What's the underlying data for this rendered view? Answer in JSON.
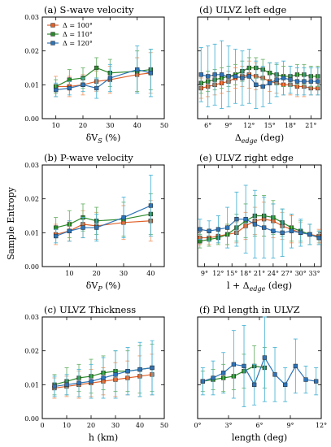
{
  "ylabel": "Sample Entropy",
  "colors": {
    "d100": "#e0622a",
    "d110": "#2a8a2a",
    "d120": "#2e74b8",
    "err100": "#f0a070",
    "err110": "#6fb46f",
    "err120": "#4fb6d6"
  },
  "chart_data": [
    {
      "id": "a",
      "type": "line",
      "title": "(a) S-wave velocity",
      "xlabel_main": "δV",
      "xlabel_sub": "S",
      "xlabel_tail": " (%)",
      "xlim": [
        5,
        50
      ],
      "ylim": [
        0,
        0.03
      ],
      "xticks": [
        10,
        20,
        30,
        40,
        50
      ],
      "xtick_labels": [
        "10",
        "20",
        "30",
        "40",
        "50"
      ],
      "yticks": [
        0,
        0.01,
        0.02,
        0.03
      ],
      "ytick_labels": [
        "0.00",
        "0.01",
        "0.02",
        "0.03"
      ],
      "legend": {
        "position": "top-left",
        "entries": [
          "Δ = 100°",
          "Δ = 110°",
          "Δ = 120°"
        ]
      },
      "series": [
        {
          "key": "d100",
          "x": [
            10,
            15,
            20,
            25,
            30,
            40,
            45
          ],
          "y": [
            0.0095,
            0.0095,
            0.01,
            0.011,
            0.0115,
            0.013,
            0.0135
          ],
          "err": [
            0.003,
            0.003,
            0.003,
            0.003,
            0.004,
            0.005,
            0.006
          ]
        },
        {
          "key": "d110",
          "x": [
            10,
            15,
            20,
            25,
            30,
            40,
            45
          ],
          "y": [
            0.0095,
            0.0115,
            0.012,
            0.015,
            0.0135,
            0.014,
            0.0145
          ],
          "err": [
            0.002,
            0.003,
            0.003,
            0.003,
            0.004,
            0.006,
            0.006
          ]
        },
        {
          "key": "d120",
          "x": [
            10,
            15,
            20,
            25,
            30,
            40,
            45
          ],
          "y": [
            0.0085,
            0.009,
            0.01,
            0.009,
            0.012,
            0.0145,
            0.0135
          ],
          "err": [
            0.002,
            0.002,
            0.002,
            0.003,
            0.004,
            0.007,
            0.007
          ]
        }
      ]
    },
    {
      "id": "d",
      "type": "line",
      "title": "(d) ULVZ left edge",
      "xlabel_main": "Δ",
      "xlabel_sub": "edge",
      "xlabel_tail": " (deg)",
      "xlim": [
        4.5,
        22.5
      ],
      "ylim": [
        0,
        0.03
      ],
      "xticks": [
        6,
        9,
        12,
        15,
        18,
        21
      ],
      "xtick_labels": [
        "6°",
        "9°",
        "12°",
        "15°",
        "18°",
        "21°"
      ],
      "yticks": [
        0,
        0.01,
        0.02,
        0.03
      ],
      "ytick_labels": [
        "",
        "",
        "",
        ""
      ],
      "series": [
        {
          "key": "d100",
          "x": [
            5,
            6,
            7,
            8,
            9,
            10,
            11,
            12,
            13,
            14,
            15,
            16,
            17,
            18,
            19,
            20,
            21,
            22
          ],
          "y": [
            0.009,
            0.0095,
            0.01,
            0.0105,
            0.011,
            0.012,
            0.0125,
            0.013,
            0.0125,
            0.012,
            0.011,
            0.0105,
            0.01,
            0.01,
            0.0095,
            0.0095,
            0.009,
            0.009
          ],
          "err": [
            0.003,
            0.003,
            0.003,
            0.003,
            0.003,
            0.003,
            0.003,
            0.004,
            0.004,
            0.003,
            0.003,
            0.003,
            0.003,
            0.003,
            0.003,
            0.003,
            0.002,
            0.002
          ]
        },
        {
          "key": "d110",
          "x": [
            5,
            6,
            7,
            8,
            9,
            10,
            11,
            12,
            13,
            14,
            15,
            16,
            17,
            18,
            19,
            20,
            21,
            22
          ],
          "y": [
            0.0105,
            0.011,
            0.0115,
            0.012,
            0.0125,
            0.013,
            0.014,
            0.015,
            0.015,
            0.0145,
            0.0135,
            0.013,
            0.0125,
            0.0125,
            0.013,
            0.013,
            0.0125,
            0.0125
          ],
          "err": [
            0.003,
            0.003,
            0.003,
            0.003,
            0.003,
            0.003,
            0.003,
            0.003,
            0.003,
            0.003,
            0.003,
            0.003,
            0.003,
            0.003,
            0.003,
            0.003,
            0.003,
            0.003
          ]
        },
        {
          "key": "d120",
          "x": [
            5,
            6,
            7,
            8,
            9,
            10,
            11,
            12,
            13,
            14,
            15,
            16,
            17,
            18,
            19,
            20,
            21,
            22
          ],
          "y": [
            0.013,
            0.0125,
            0.013,
            0.013,
            0.0125,
            0.0125,
            0.012,
            0.0125,
            0.01,
            0.0095,
            0.0105,
            0.0115,
            0.012,
            0.0115,
            0.011,
            0.011,
            0.011,
            0.011
          ],
          "err": [
            0.008,
            0.009,
            0.009,
            0.01,
            0.009,
            0.008,
            0.008,
            0.008,
            0.007,
            0.006,
            0.006,
            0.005,
            0.005,
            0.004,
            0.004,
            0.004,
            0.004,
            0.004
          ]
        }
      ]
    },
    {
      "id": "b",
      "type": "line",
      "title": "(b) P-wave velocity",
      "xlabel_main": "δV",
      "xlabel_sub": "P",
      "xlabel_tail": " (%)",
      "xlim": [
        0,
        45
      ],
      "ylim": [
        0,
        0.03
      ],
      "xticks": [
        10,
        20,
        30,
        40
      ],
      "xtick_labels": [
        "10",
        "20",
        "30",
        "40"
      ],
      "yticks": [
        0,
        0.01,
        0.02,
        0.03
      ],
      "ytick_labels": [
        "0.00",
        "0.01",
        "0.02",
        "0.03"
      ],
      "series": [
        {
          "key": "d100",
          "x": [
            5,
            10,
            15,
            20,
            30,
            40
          ],
          "y": [
            0.0095,
            0.0105,
            0.0125,
            0.012,
            0.013,
            0.0135
          ],
          "err": [
            0.003,
            0.003,
            0.004,
            0.004,
            0.005,
            0.006
          ]
        },
        {
          "key": "d110",
          "x": [
            5,
            10,
            15,
            20,
            30,
            40
          ],
          "y": [
            0.0115,
            0.0125,
            0.0145,
            0.0135,
            0.014,
            0.0155
          ],
          "err": [
            0.003,
            0.004,
            0.004,
            0.004,
            0.005,
            0.006
          ]
        },
        {
          "key": "d120",
          "x": [
            5,
            10,
            15,
            20,
            30,
            40
          ],
          "y": [
            0.009,
            0.0105,
            0.0115,
            0.0115,
            0.0145,
            0.018
          ],
          "err": [
            0.002,
            0.003,
            0.003,
            0.004,
            0.006,
            0.009
          ]
        }
      ]
    },
    {
      "id": "e",
      "type": "line",
      "title": "(e) ULVZ right edge",
      "xlabel_main": "l + Δ",
      "xlabel_sub": "edge",
      "xlabel_tail": " (deg)",
      "xlim": [
        7.5,
        34.5
      ],
      "ylim": [
        0,
        0.03
      ],
      "xticks": [
        9,
        12,
        15,
        18,
        21,
        24,
        27,
        30,
        33
      ],
      "xtick_labels": [
        "9°",
        "12°",
        "15°",
        "18°",
        "21°",
        "24°",
        "27°",
        "30°",
        "33°"
      ],
      "yticks": [
        0,
        0.01,
        0.02,
        0.03
      ],
      "ytick_labels": [
        "",
        "",
        "",
        ""
      ],
      "series": [
        {
          "key": "d100",
          "x": [
            8,
            10,
            12,
            14,
            16,
            18,
            20,
            22,
            24,
            26,
            28,
            30,
            32,
            34
          ],
          "y": [
            0.0085,
            0.0085,
            0.009,
            0.0095,
            0.01,
            0.012,
            0.0135,
            0.014,
            0.0135,
            0.012,
            0.011,
            0.01,
            0.0095,
            0.009
          ],
          "err": [
            0.002,
            0.002,
            0.002,
            0.003,
            0.003,
            0.004,
            0.004,
            0.005,
            0.005,
            0.004,
            0.004,
            0.003,
            0.003,
            0.002
          ]
        },
        {
          "key": "d110",
          "x": [
            8,
            10,
            12,
            14,
            16,
            18,
            20,
            22,
            24,
            26,
            28,
            30,
            32,
            34
          ],
          "y": [
            0.0075,
            0.008,
            0.0085,
            0.0095,
            0.0115,
            0.0135,
            0.015,
            0.015,
            0.0145,
            0.013,
            0.0115,
            0.0105,
            0.0095,
            0.0085
          ],
          "err": [
            0.002,
            0.002,
            0.002,
            0.003,
            0.004,
            0.005,
            0.006,
            0.006,
            0.005,
            0.004,
            0.004,
            0.003,
            0.003,
            0.002
          ]
        },
        {
          "key": "d120",
          "x": [
            8,
            10,
            12,
            14,
            16,
            18,
            20,
            22,
            24,
            26,
            28,
            30,
            32,
            34
          ],
          "y": [
            0.011,
            0.0105,
            0.011,
            0.0115,
            0.014,
            0.014,
            0.0125,
            0.0115,
            0.0105,
            0.01,
            0.0105,
            0.01,
            0.0095,
            0.0085
          ],
          "err": [
            0.003,
            0.003,
            0.004,
            0.006,
            0.008,
            0.01,
            0.01,
            0.009,
            0.008,
            0.007,
            0.005,
            0.004,
            0.003,
            0.002
          ]
        }
      ]
    },
    {
      "id": "c",
      "type": "line",
      "title": "(c) ULVZ Thickness",
      "xlabel_main": "h (km)",
      "xlabel_sub": "",
      "xlabel_tail": "",
      "xlim": [
        0,
        50
      ],
      "ylim": [
        0,
        0.03
      ],
      "xticks": [
        0,
        10,
        20,
        30,
        40,
        50
      ],
      "xtick_labels": [
        "0",
        "10",
        "20",
        "30",
        "40",
        "50"
      ],
      "yticks": [
        0,
        0.01,
        0.02,
        0.03
      ],
      "ytick_labels": [
        "0.00",
        "0.01",
        "0.02",
        "0.03"
      ],
      "series": [
        {
          "key": "d100",
          "x": [
            5,
            10,
            15,
            20,
            25,
            30,
            35,
            40,
            45
          ],
          "y": [
            0.009,
            0.0095,
            0.01,
            0.0105,
            0.011,
            0.0115,
            0.012,
            0.0125,
            0.013
          ],
          "err": [
            0.003,
            0.003,
            0.004,
            0.004,
            0.004,
            0.005,
            0.005,
            0.006,
            0.006
          ]
        },
        {
          "key": "d110",
          "x": [
            5,
            10,
            15,
            20,
            25,
            30,
            35,
            40,
            45
          ],
          "y": [
            0.01,
            0.011,
            0.012,
            0.0125,
            0.0135,
            0.014,
            0.014,
            0.0145,
            0.015
          ],
          "err": [
            0.003,
            0.004,
            0.004,
            0.005,
            0.005,
            0.006,
            0.006,
            0.007,
            0.007
          ]
        },
        {
          "key": "d120",
          "x": [
            5,
            10,
            15,
            20,
            25,
            30,
            35,
            40,
            45
          ],
          "y": [
            0.0095,
            0.01,
            0.0105,
            0.011,
            0.012,
            0.013,
            0.014,
            0.0145,
            0.015
          ],
          "err": [
            0.003,
            0.003,
            0.004,
            0.005,
            0.006,
            0.007,
            0.007,
            0.008,
            0.008
          ]
        }
      ]
    },
    {
      "id": "f",
      "type": "line",
      "title": "(f) Pd length in ULVZ",
      "xlabel_main": "length (deg)",
      "xlabel_sub": "",
      "xlabel_tail": "",
      "xlim": [
        0,
        12
      ],
      "ylim": [
        0,
        0.03
      ],
      "xticks": [
        0,
        3,
        6,
        9,
        12
      ],
      "xtick_labels": [
        "0°",
        "3°",
        "6°",
        "9°",
        "12°"
      ],
      "yticks": [
        0,
        0.01,
        0.02,
        0.03
      ],
      "ytick_labels": [
        "",
        "",
        "",
        ""
      ],
      "series": [
        {
          "key": "d110",
          "x": [
            0.5,
            1.5,
            2.5,
            3.5,
            4.5,
            5.5,
            6.5
          ],
          "y": [
            0.011,
            0.0115,
            0.012,
            0.0125,
            0.014,
            0.0155,
            0.015
          ],
          "err": [
            0.003,
            0.003,
            0.004,
            0.004,
            0.005,
            0.006,
            0.006
          ]
        },
        {
          "key": "d120",
          "x": [
            0.5,
            1.5,
            2.5,
            3.5,
            4.5,
            5.5,
            6.5,
            7.5,
            8.5,
            9.5,
            10.5,
            11.5
          ],
          "y": [
            0.011,
            0.012,
            0.0135,
            0.016,
            0.0155,
            0.01,
            0.018,
            0.013,
            0.01,
            0.0155,
            0.0115,
            0.011
          ],
          "err": [
            0.004,
            0.005,
            0.006,
            0.01,
            0.012,
            0.006,
            0.013,
            0.008,
            0.005,
            0.008,
            0.004,
            0.004
          ]
        }
      ]
    }
  ]
}
